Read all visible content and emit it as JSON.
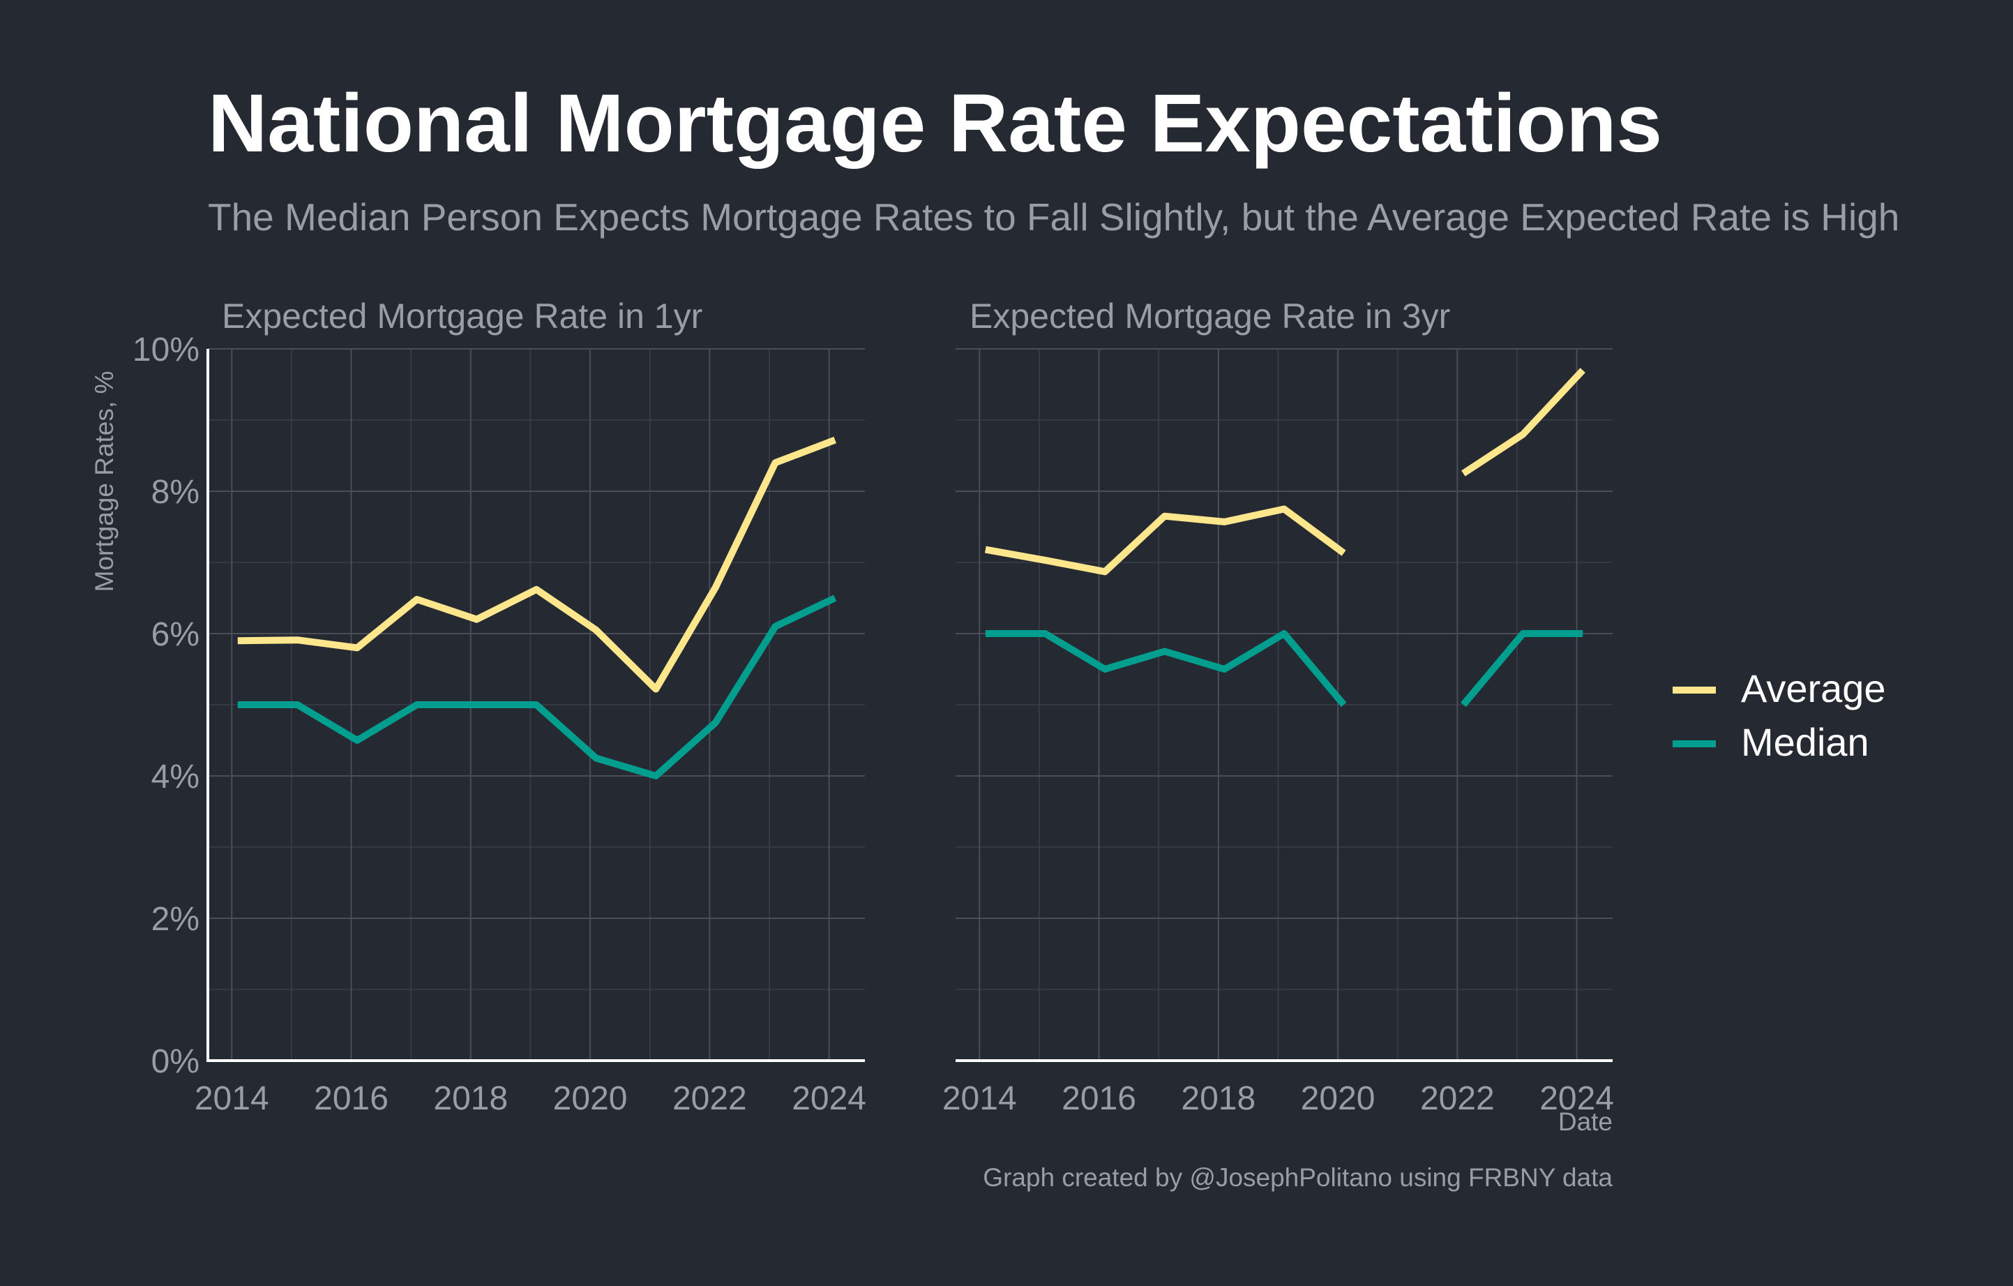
{
  "chart_data": {
    "type": "line",
    "title": "National Mortgage Rate Expectations",
    "subtitle": "The Median Person Expects Mortgage Rates to Fall Slightly, but the Average Expected Rate is High",
    "ylabel": "Mortgage Rates, %",
    "xlabel": "Date",
    "caption": "Graph created by @JosephPolitano using FRBNY data",
    "ylim": [
      0,
      10
    ],
    "xlim": [
      2013.6,
      2024.6
    ],
    "yticks": [
      0,
      2,
      4,
      6,
      8,
      10
    ],
    "ytick_labels": [
      "0%",
      "2%",
      "4%",
      "6%",
      "8%",
      "10%"
    ],
    "xticks": [
      2014,
      2016,
      2018,
      2020,
      2022,
      2024
    ],
    "xtick_labels": [
      "2014",
      "2016",
      "2018",
      "2020",
      "2022",
      "2024"
    ],
    "grid": true,
    "legend": {
      "position": "right",
      "entries": [
        {
          "name": "Average",
          "color": "#fde68b"
        },
        {
          "name": "Median",
          "color": "#009e8e"
        }
      ]
    },
    "panels": [
      {
        "title": "Expected Mortgage Rate in 1yr",
        "x": [
          2014.1,
          2015.1,
          2016.1,
          2017.1,
          2018.1,
          2019.1,
          2020.1,
          2021.1,
          2022.1,
          2023.1,
          2024.1
        ],
        "series": [
          {
            "name": "Average",
            "color": "#fde68b",
            "values": [
              5.9,
              5.91,
              5.8,
              6.48,
              6.2,
              6.62,
              6.05,
              5.22,
              6.65,
              8.4,
              8.72
            ]
          },
          {
            "name": "Median",
            "color": "#009e8e",
            "values": [
              5.0,
              5.0,
              4.5,
              5.0,
              5.0,
              5.0,
              4.25,
              4.0,
              4.75,
              6.1,
              6.5
            ]
          }
        ]
      },
      {
        "title": "Expected Mortgage Rate in 3yr",
        "x": [
          2014.1,
          2015.1,
          2016.1,
          2017.1,
          2018.1,
          2019.1,
          2020.1,
          2021.1,
          2022.1,
          2023.1,
          2024.1
        ],
        "series": [
          {
            "name": "Average",
            "color": "#fde68b",
            "values": [
              7.18,
              7.03,
              6.87,
              7.65,
              7.57,
              7.75,
              7.13,
              null,
              8.25,
              8.8,
              9.7
            ]
          },
          {
            "name": "Median",
            "color": "#009e8e",
            "values": [
              6.0,
              6.0,
              5.5,
              5.75,
              5.5,
              6.0,
              5.0,
              null,
              5.0,
              6.0,
              6.0
            ]
          }
        ]
      }
    ]
  }
}
